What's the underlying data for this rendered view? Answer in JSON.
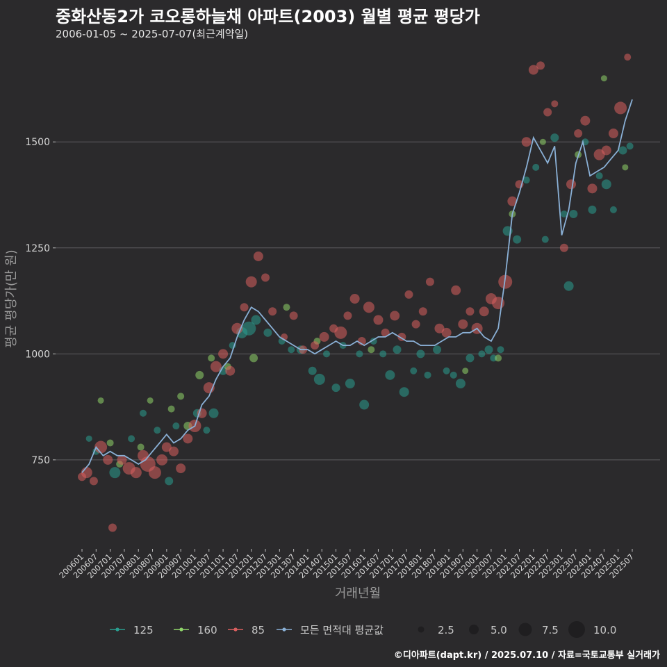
{
  "chart_data": {
    "type": "scatter",
    "title": "중화산동2가 코오롱하늘채 아파트(2003) 월별 평균 평당가",
    "subtitle": "2006-01-05 ~ 2025-07-07(최근계약일)",
    "xlabel": "거래년월",
    "ylabel": "평균 평당가(만 원)",
    "caption": "©디아파트(dapt.kr) / 2025.07.10 / 자료=국토교통부 실거래가",
    "ylim": [
      540,
      1720
    ],
    "y_ticks": [
      750,
      1000,
      1250,
      1500
    ],
    "y_tick_labels": [
      "750",
      "1000",
      "1250",
      "1500"
    ],
    "x_start": "2006-01",
    "x_end": "2025-07",
    "x_tick_labels": [
      "200601",
      "200607",
      "200701",
      "200707",
      "200801",
      "200807",
      "200901",
      "200907",
      "201001",
      "201007",
      "201101",
      "201107",
      "201201",
      "201207",
      "201301",
      "201307",
      "201401",
      "201407",
      "201501",
      "201507",
      "201601",
      "201607",
      "201701",
      "201707",
      "201801",
      "201807",
      "201901",
      "201907",
      "202001",
      "202007",
      "202101",
      "202107",
      "202201",
      "202207",
      "202301",
      "202307",
      "202401",
      "202407",
      "202501",
      "202507"
    ],
    "grid": true,
    "legend_position": "bottom",
    "series": [
      {
        "name": "125",
        "color": "#2a9d8f",
        "points": [
          [
            "2006-04",
            800,
            2.5
          ],
          [
            "2006-07",
            770,
            3
          ],
          [
            "2007-03",
            720,
            6
          ],
          [
            "2007-10",
            800,
            3
          ],
          [
            "2008-03",
            860,
            3
          ],
          [
            "2008-09",
            820,
            3
          ],
          [
            "2009-02",
            700,
            4
          ],
          [
            "2009-05",
            830,
            3
          ],
          [
            "2010-02",
            860,
            4
          ],
          [
            "2010-06",
            820,
            3
          ],
          [
            "2010-09",
            860,
            5
          ],
          [
            "2011-01",
            960,
            4
          ],
          [
            "2011-05",
            1020,
            3
          ],
          [
            "2011-09",
            1050,
            6
          ],
          [
            "2011-12",
            1060,
            8
          ],
          [
            "2012-03",
            1080,
            5
          ],
          [
            "2012-08",
            1050,
            4
          ],
          [
            "2013-02",
            1030,
            3
          ],
          [
            "2013-06",
            1010,
            3
          ],
          [
            "2013-10",
            1010,
            4
          ],
          [
            "2014-03",
            960,
            4
          ],
          [
            "2014-06",
            940,
            6
          ],
          [
            "2014-09",
            1000,
            3
          ],
          [
            "2015-01",
            920,
            4
          ],
          [
            "2015-04",
            1020,
            3
          ],
          [
            "2015-07",
            930,
            5
          ],
          [
            "2015-11",
            1000,
            3
          ],
          [
            "2016-01",
            880,
            5
          ],
          [
            "2016-05",
            1030,
            3
          ],
          [
            "2016-09",
            1000,
            3
          ],
          [
            "2016-12",
            950,
            5
          ],
          [
            "2017-03",
            1010,
            4
          ],
          [
            "2017-06",
            910,
            5
          ],
          [
            "2017-10",
            960,
            3
          ],
          [
            "2018-01",
            1000,
            4
          ],
          [
            "2018-04",
            950,
            3
          ],
          [
            "2018-08",
            1010,
            4
          ],
          [
            "2018-12",
            960,
            3
          ],
          [
            "2019-03",
            950,
            3
          ],
          [
            "2019-06",
            930,
            5
          ],
          [
            "2019-10",
            990,
            4
          ],
          [
            "2020-03",
            1000,
            3
          ],
          [
            "2020-06",
            1010,
            4
          ],
          [
            "2020-08",
            990,
            3
          ],
          [
            "2020-11",
            1010,
            3
          ],
          [
            "2021-02",
            1290,
            5
          ],
          [
            "2021-06",
            1270,
            4
          ],
          [
            "2021-10",
            1410,
            3
          ],
          [
            "2022-02",
            1440,
            3
          ],
          [
            "2022-06",
            1270,
            3
          ],
          [
            "2022-10",
            1510,
            4
          ],
          [
            "2023-02",
            1330,
            3
          ],
          [
            "2023-04",
            1160,
            5
          ],
          [
            "2023-06",
            1330,
            4
          ],
          [
            "2023-11",
            1500,
            3
          ],
          [
            "2024-02",
            1340,
            4
          ],
          [
            "2024-05",
            1420,
            3
          ],
          [
            "2024-08",
            1400,
            5
          ],
          [
            "2024-11",
            1340,
            3
          ],
          [
            "2025-03",
            1480,
            4
          ],
          [
            "2025-06",
            1490,
            3
          ]
        ]
      },
      {
        "name": "160",
        "color": "#8fd46a",
        "points": [
          [
            "2006-09",
            890,
            2.5
          ],
          [
            "2007-01",
            790,
            3
          ],
          [
            "2007-05",
            740,
            3
          ],
          [
            "2008-02",
            780,
            3
          ],
          [
            "2008-06",
            890,
            2.5
          ],
          [
            "2009-03",
            870,
            3
          ],
          [
            "2009-07",
            900,
            3
          ],
          [
            "2009-10",
            830,
            4
          ],
          [
            "2010-03",
            950,
            4
          ],
          [
            "2010-08",
            990,
            3
          ],
          [
            "2011-03",
            970,
            3
          ],
          [
            "2012-02",
            990,
            4
          ],
          [
            "2013-04",
            1110,
            3
          ],
          [
            "2014-05",
            1030,
            3
          ],
          [
            "2016-04",
            1010,
            3
          ],
          [
            "2019-08",
            960,
            2.5
          ],
          [
            "2020-10",
            990,
            3
          ],
          [
            "2021-04",
            1330,
            3
          ],
          [
            "2022-05",
            1500,
            2.5
          ],
          [
            "2023-08",
            1470,
            3
          ],
          [
            "2024-07",
            1650,
            2.5
          ],
          [
            "2025-04",
            1440,
            2.5
          ]
        ]
      },
      {
        "name": "85",
        "color": "#d95f5f",
        "points": [
          [
            "2006-01",
            710,
            4
          ],
          [
            "2006-03",
            720,
            6
          ],
          [
            "2006-06",
            700,
            4
          ],
          [
            "2006-09",
            780,
            7
          ],
          [
            "2006-12",
            750,
            5
          ],
          [
            "2007-02",
            590,
            4
          ],
          [
            "2007-06",
            750,
            5
          ],
          [
            "2007-09",
            730,
            7
          ],
          [
            "2007-12",
            720,
            6
          ],
          [
            "2008-03",
            760,
            6
          ],
          [
            "2008-05",
            740,
            9
          ],
          [
            "2008-08",
            720,
            7
          ],
          [
            "2008-11",
            750,
            6
          ],
          [
            "2009-01",
            780,
            5
          ],
          [
            "2009-04",
            770,
            5
          ],
          [
            "2009-07",
            730,
            5
          ],
          [
            "2009-10",
            800,
            5
          ],
          [
            "2010-01",
            830,
            7
          ],
          [
            "2010-04",
            860,
            5
          ],
          [
            "2010-07",
            920,
            6
          ],
          [
            "2010-10",
            970,
            6
          ],
          [
            "2011-01",
            1000,
            5
          ],
          [
            "2011-04",
            960,
            5
          ],
          [
            "2011-07",
            1060,
            6
          ],
          [
            "2011-10",
            1110,
            4
          ],
          [
            "2012-01",
            1170,
            6
          ],
          [
            "2012-04",
            1230,
            5
          ],
          [
            "2012-07",
            1180,
            4
          ],
          [
            "2012-10",
            1100,
            4
          ],
          [
            "2013-03",
            1040,
            3
          ],
          [
            "2013-07",
            1090,
            4
          ],
          [
            "2013-11",
            1010,
            4
          ],
          [
            "2014-04",
            1020,
            4
          ],
          [
            "2014-08",
            1040,
            5
          ],
          [
            "2014-12",
            1060,
            4
          ],
          [
            "2015-03",
            1050,
            7
          ],
          [
            "2015-06",
            1090,
            4
          ],
          [
            "2015-09",
            1130,
            5
          ],
          [
            "2015-12",
            1030,
            4
          ],
          [
            "2016-03",
            1110,
            6
          ],
          [
            "2016-07",
            1080,
            5
          ],
          [
            "2016-10",
            1050,
            4
          ],
          [
            "2017-02",
            1090,
            5
          ],
          [
            "2017-05",
            1040,
            4
          ],
          [
            "2017-08",
            1140,
            4
          ],
          [
            "2017-11",
            1070,
            4
          ],
          [
            "2018-02",
            1100,
            4
          ],
          [
            "2018-05",
            1170,
            4
          ],
          [
            "2018-09",
            1060,
            5
          ],
          [
            "2018-12",
            1050,
            5
          ],
          [
            "2019-04",
            1150,
            5
          ],
          [
            "2019-07",
            1070,
            5
          ],
          [
            "2019-10",
            1100,
            4
          ],
          [
            "2020-01",
            1060,
            6
          ],
          [
            "2020-04",
            1100,
            5
          ],
          [
            "2020-07",
            1130,
            6
          ],
          [
            "2020-10",
            1120,
            7
          ],
          [
            "2021-01",
            1170,
            8
          ],
          [
            "2021-04",
            1360,
            5
          ],
          [
            "2021-07",
            1400,
            4
          ],
          [
            "2021-10",
            1500,
            5
          ],
          [
            "2022-01",
            1670,
            5
          ],
          [
            "2022-04",
            1680,
            4
          ],
          [
            "2022-07",
            1570,
            4
          ],
          [
            "2022-10",
            1590,
            3
          ],
          [
            "2023-02",
            1250,
            4
          ],
          [
            "2023-05",
            1400,
            5
          ],
          [
            "2023-08",
            1520,
            4
          ],
          [
            "2023-11",
            1550,
            5
          ],
          [
            "2024-02",
            1390,
            5
          ],
          [
            "2024-05",
            1470,
            6
          ],
          [
            "2024-08",
            1480,
            5
          ],
          [
            "2024-11",
            1520,
            5
          ],
          [
            "2025-02",
            1580,
            7
          ],
          [
            "2025-05",
            1700,
            3
          ]
        ]
      }
    ],
    "mean_series": {
      "name": "모든 면적대 평균값",
      "color": "#8ab0d6",
      "points": [
        [
          "2006-01",
          720
        ],
        [
          "2006-04",
          740
        ],
        [
          "2006-07",
          780
        ],
        [
          "2006-10",
          760
        ],
        [
          "2007-01",
          770
        ],
        [
          "2007-04",
          760
        ],
        [
          "2007-07",
          760
        ],
        [
          "2007-10",
          750
        ],
        [
          "2008-01",
          740
        ],
        [
          "2008-04",
          750
        ],
        [
          "2008-07",
          770
        ],
        [
          "2008-10",
          790
        ],
        [
          "2009-01",
          810
        ],
        [
          "2009-04",
          790
        ],
        [
          "2009-07",
          800
        ],
        [
          "2009-10",
          820
        ],
        [
          "2010-01",
          830
        ],
        [
          "2010-04",
          880
        ],
        [
          "2010-07",
          900
        ],
        [
          "2010-10",
          940
        ],
        [
          "2011-01",
          970
        ],
        [
          "2011-04",
          990
        ],
        [
          "2011-07",
          1040
        ],
        [
          "2011-10",
          1080
        ],
        [
          "2012-01",
          1110
        ],
        [
          "2012-04",
          1100
        ],
        [
          "2012-07",
          1080
        ],
        [
          "2012-10",
          1060
        ],
        [
          "2013-01",
          1040
        ],
        [
          "2013-04",
          1030
        ],
        [
          "2013-07",
          1020
        ],
        [
          "2013-10",
          1010
        ],
        [
          "2014-01",
          1010
        ],
        [
          "2014-04",
          1000
        ],
        [
          "2014-07",
          1010
        ],
        [
          "2014-10",
          1020
        ],
        [
          "2015-01",
          1030
        ],
        [
          "2015-04",
          1020
        ],
        [
          "2015-07",
          1020
        ],
        [
          "2015-10",
          1030
        ],
        [
          "2016-01",
          1020
        ],
        [
          "2016-04",
          1030
        ],
        [
          "2016-07",
          1040
        ],
        [
          "2016-10",
          1040
        ],
        [
          "2017-01",
          1050
        ],
        [
          "2017-04",
          1040
        ],
        [
          "2017-07",
          1030
        ],
        [
          "2017-10",
          1030
        ],
        [
          "2018-01",
          1020
        ],
        [
          "2018-04",
          1020
        ],
        [
          "2018-07",
          1020
        ],
        [
          "2018-10",
          1030
        ],
        [
          "2019-01",
          1040
        ],
        [
          "2019-04",
          1040
        ],
        [
          "2019-07",
          1050
        ],
        [
          "2019-10",
          1050
        ],
        [
          "2020-01",
          1060
        ],
        [
          "2020-04",
          1040
        ],
        [
          "2020-07",
          1030
        ],
        [
          "2020-10",
          1060
        ],
        [
          "2021-01",
          1180
        ],
        [
          "2021-04",
          1330
        ],
        [
          "2021-07",
          1380
        ],
        [
          "2021-10",
          1440
        ],
        [
          "2022-01",
          1510
        ],
        [
          "2022-04",
          1480
        ],
        [
          "2022-07",
          1450
        ],
        [
          "2022-10",
          1490
        ],
        [
          "2023-01",
          1280
        ],
        [
          "2023-04",
          1340
        ],
        [
          "2023-07",
          1450
        ],
        [
          "2023-10",
          1500
        ],
        [
          "2024-01",
          1420
        ],
        [
          "2024-04",
          1430
        ],
        [
          "2024-07",
          1440
        ],
        [
          "2024-10",
          1460
        ],
        [
          "2025-01",
          1480
        ],
        [
          "2025-04",
          1550
        ],
        [
          "2025-07",
          1600
        ]
      ]
    },
    "size_legend": [
      {
        "value": 2.5,
        "label": "2.5"
      },
      {
        "value": 5.0,
        "label": "5.0"
      },
      {
        "value": 7.5,
        "label": "7.5"
      },
      {
        "value": 10.0,
        "label": "10.0"
      }
    ]
  }
}
